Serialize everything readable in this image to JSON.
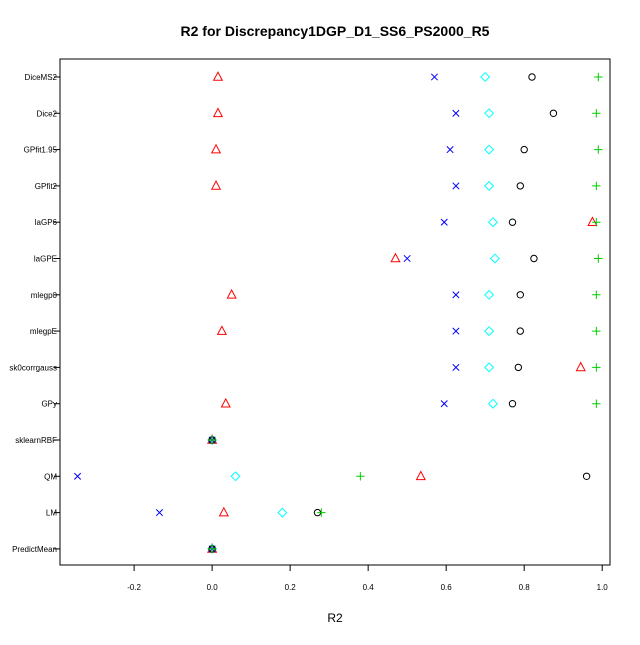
{
  "chart_data": {
    "type": "scatter",
    "title": "R2 for Discrepancy1DGP_D1_SS6_PS2000_R5",
    "xlabel": "R2",
    "ylabel": "",
    "xlim": [
      -0.39,
      1.02
    ],
    "x_ticks": [
      -0.2,
      0.0,
      0.2,
      0.4,
      0.6,
      0.8,
      1.0
    ],
    "x_tick_labels": [
      "-0.2",
      "0.0",
      "0.2",
      "0.4",
      "0.6",
      "0.8",
      "1.0"
    ],
    "grid": false,
    "categories": [
      "DiceMS2",
      "Dice2",
      "GPfit1.95",
      "GPfit2",
      "laGP6",
      "laGPE",
      "mlegp0",
      "mlegpE",
      "sk0corrgauss",
      "GPy",
      "sklearnRBF",
      "QM",
      "LM",
      "PredictMean"
    ],
    "series": [
      {
        "marker": "triangle",
        "color": "#ff0000",
        "values": [
          0.015,
          0.015,
          0.01,
          0.01,
          0.975,
          0.47,
          0.05,
          0.025,
          0.945,
          0.035,
          0.0,
          0.535,
          0.03,
          0.0
        ]
      },
      {
        "marker": "cross",
        "color": "#0000ff",
        "values": [
          0.57,
          0.625,
          0.61,
          0.625,
          0.595,
          0.5,
          0.625,
          0.625,
          0.625,
          0.595,
          0.0,
          -0.345,
          -0.135,
          0.0
        ]
      },
      {
        "marker": "diamond",
        "color": "#00ffff",
        "values": [
          0.7,
          0.71,
          0.71,
          0.71,
          0.72,
          0.725,
          0.71,
          0.71,
          0.71,
          0.72,
          0.0,
          0.06,
          0.18,
          0.0
        ]
      },
      {
        "marker": "circle",
        "color": "#000000",
        "values": [
          0.82,
          0.875,
          0.8,
          0.79,
          0.77,
          0.825,
          0.79,
          0.79,
          0.785,
          0.77,
          0.0,
          0.96,
          0.27,
          0.0
        ]
      },
      {
        "marker": "plus",
        "color": "#00cc00",
        "values": [
          0.99,
          0.985,
          0.99,
          0.985,
          0.985,
          0.99,
          0.985,
          0.985,
          0.985,
          0.985,
          0.0,
          0.38,
          0.28,
          0.0
        ]
      }
    ]
  }
}
